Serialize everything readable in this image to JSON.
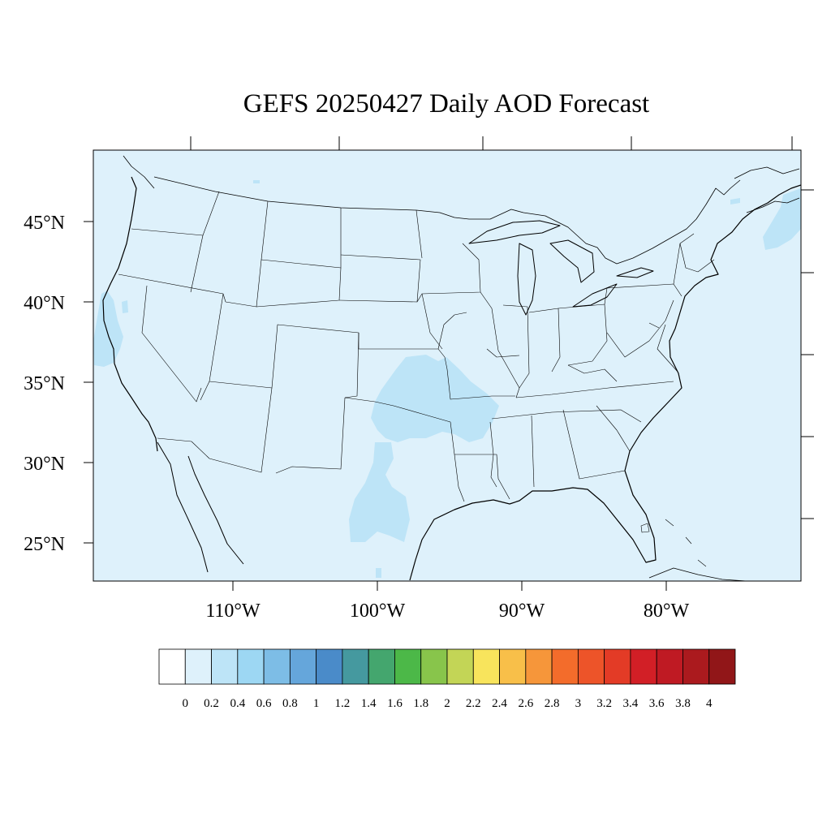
{
  "title": "GEFS 20250427 Daily AOD Forecast",
  "map": {
    "background_color": "#def1fb",
    "plume_color": "#bde4f7",
    "lat_labels": [
      "45°N",
      "40°N",
      "35°N",
      "30°N",
      "25°N"
    ],
    "lon_labels": [
      "110°W",
      "100°W",
      "90°W",
      "80°W"
    ]
  },
  "colorbar": {
    "labels": [
      "0",
      "0.2",
      "0.4",
      "0.6",
      "0.8",
      "1",
      "1.2",
      "1.4",
      "1.6",
      "1.8",
      "2",
      "2.2",
      "2.4",
      "2.6",
      "2.8",
      "3",
      "3.2",
      "3.4",
      "3.6",
      "3.8",
      "4"
    ],
    "colors": [
      "#ffffff",
      "#def1fb",
      "#bde4f7",
      "#9dd7f3",
      "#7dbde6",
      "#65a6db",
      "#4a8bc9",
      "#45999f",
      "#44a66e",
      "#4cb848",
      "#88c54b",
      "#c3d556",
      "#f8e45c",
      "#f8bf49",
      "#f6963a",
      "#f36c2b",
      "#ed5429",
      "#e33b26",
      "#d21f26",
      "#bf1a23",
      "#ab1a1e",
      "#911618"
    ]
  }
}
